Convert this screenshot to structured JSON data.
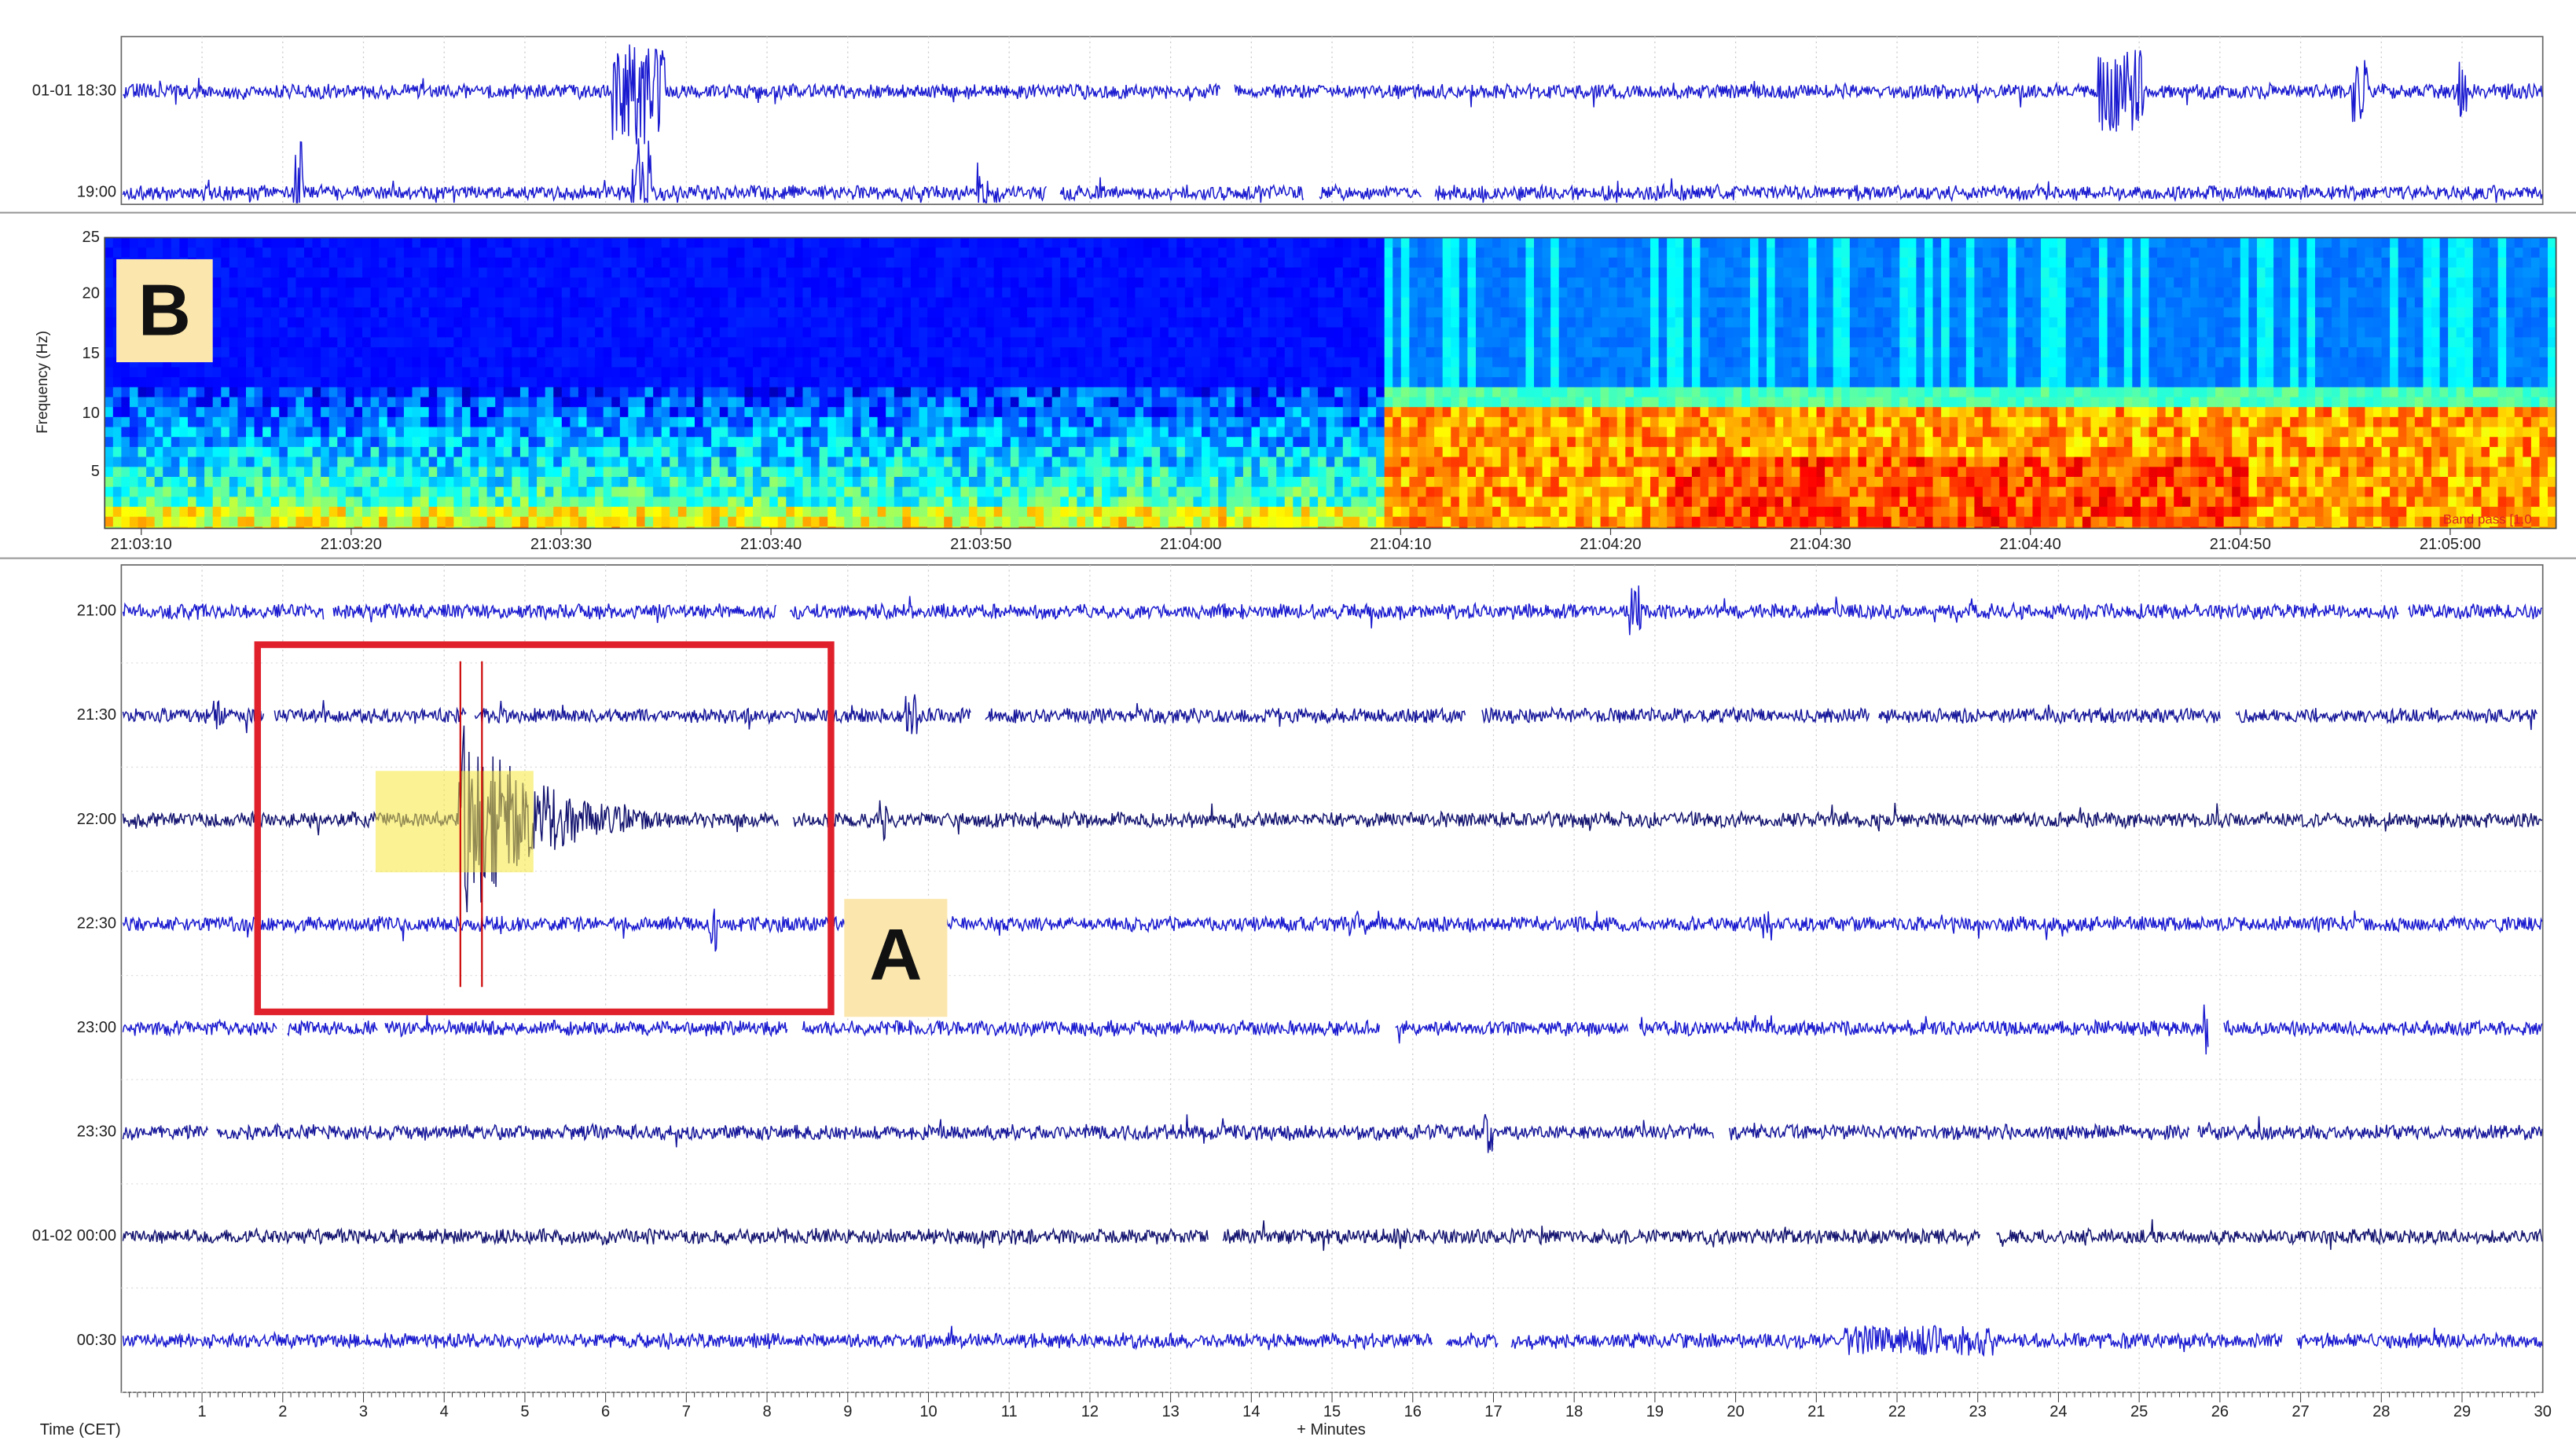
{
  "top_panel": {
    "row_labels": [
      "01-01 18:30",
      "19:00"
    ]
  },
  "spectrogram": {
    "label": "B",
    "y_axis_label": "Frequency (Hz)",
    "y_ticks": [
      "25",
      "20",
      "15",
      "10",
      "5"
    ],
    "x_ticks": [
      "21:03:10",
      "21:03:20",
      "21:03:30",
      "21:03:40",
      "21:03:50",
      "21:04:00",
      "21:04:10",
      "21:04:20",
      "21:04:30",
      "21:04:40",
      "21:04:50",
      "21:05:00"
    ],
    "filter_label": "Band pass [1.0"
  },
  "helicorder": {
    "row_labels": [
      "21:00",
      "21:30",
      "22:00",
      "22:30",
      "23:00",
      "23:30",
      "01-02 00:00",
      "00:30"
    ],
    "x_ticks": [
      "1",
      "2",
      "3",
      "4",
      "5",
      "6",
      "7",
      "8",
      "9",
      "10",
      "11",
      "12",
      "13",
      "14",
      "15",
      "16",
      "17",
      "18",
      "19",
      "20",
      "21",
      "22",
      "23",
      "24",
      "25",
      "26",
      "27",
      "28",
      "29",
      "30"
    ],
    "x_axis_label": "+ Minutes",
    "time_label": "Time (CET)",
    "annotation": "A"
  }
}
